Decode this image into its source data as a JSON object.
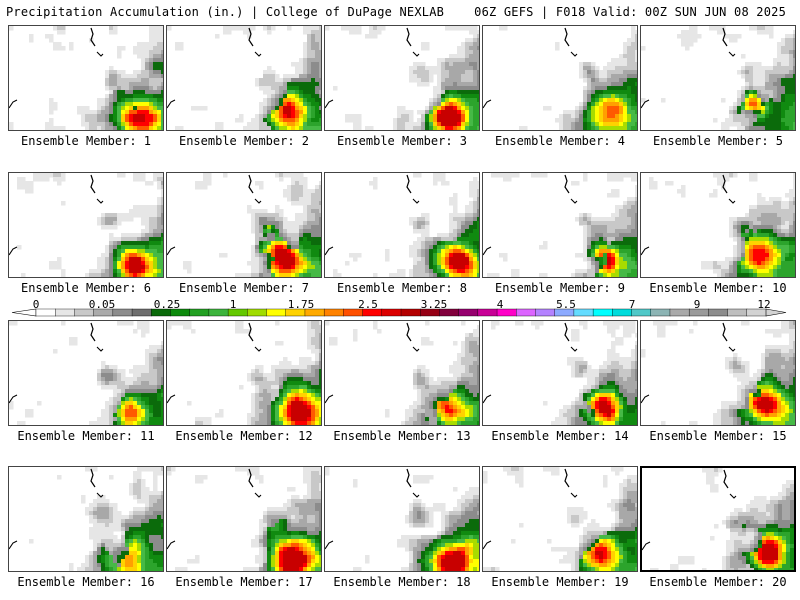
{
  "header": {
    "left": "Precipitation Accumulation (in.) | College of DuPage NEXLAB",
    "right": "06Z GEFS | F018 Valid: 00Z SUN JUN 08 2025"
  },
  "colorbar": {
    "labels": [
      "0",
      "0.05",
      "0.25",
      "1",
      "1.75",
      "2.5",
      "3.25",
      "4",
      "5.5",
      "7",
      "9",
      "12"
    ],
    "colors": [
      "#ffffff",
      "#e6e6e6",
      "#c8c8c8",
      "#aaaaaa",
      "#8c8c8c",
      "#6e6e6e",
      "#0a6a0a",
      "#0c8a0c",
      "#22a022",
      "#3cb43c",
      "#64c800",
      "#a0dc00",
      "#ffff00",
      "#ffd200",
      "#ffaa00",
      "#ff8200",
      "#ff5000",
      "#ff0000",
      "#dc0000",
      "#b40000",
      "#960014",
      "#82003c",
      "#96006e",
      "#c80096",
      "#ff00c8",
      "#dc64ff",
      "#b482ff",
      "#8caaff",
      "#64dcff",
      "#00ffff",
      "#00dcdc",
      "#50c8c8",
      "#8cb4b4",
      "#aaaaaa",
      "#9a9a9a",
      "#8c8c8c",
      "#bebebe",
      "#d2d2d2"
    ]
  },
  "members": [
    {
      "label": "Ensemble Member: 1"
    },
    {
      "label": "Ensemble Member: 2"
    },
    {
      "label": "Ensemble Member: 3"
    },
    {
      "label": "Ensemble Member: 4"
    },
    {
      "label": "Ensemble Member: 5"
    },
    {
      "label": "Ensemble Member: 6"
    },
    {
      "label": "Ensemble Member: 7"
    },
    {
      "label": "Ensemble Member: 8"
    },
    {
      "label": "Ensemble Member: 9"
    },
    {
      "label": "Ensemble Member: 10"
    },
    {
      "label": "Ensemble Member: 11"
    },
    {
      "label": "Ensemble Member: 12"
    },
    {
      "label": "Ensemble Member: 13"
    },
    {
      "label": "Ensemble Member: 14"
    },
    {
      "label": "Ensemble Member: 15"
    },
    {
      "label": "Ensemble Member: 16"
    },
    {
      "label": "Ensemble Member: 17"
    },
    {
      "label": "Ensemble Member: 18"
    },
    {
      "label": "Ensemble Member: 19"
    },
    {
      "label": "Ensemble Member: 20"
    }
  ]
}
